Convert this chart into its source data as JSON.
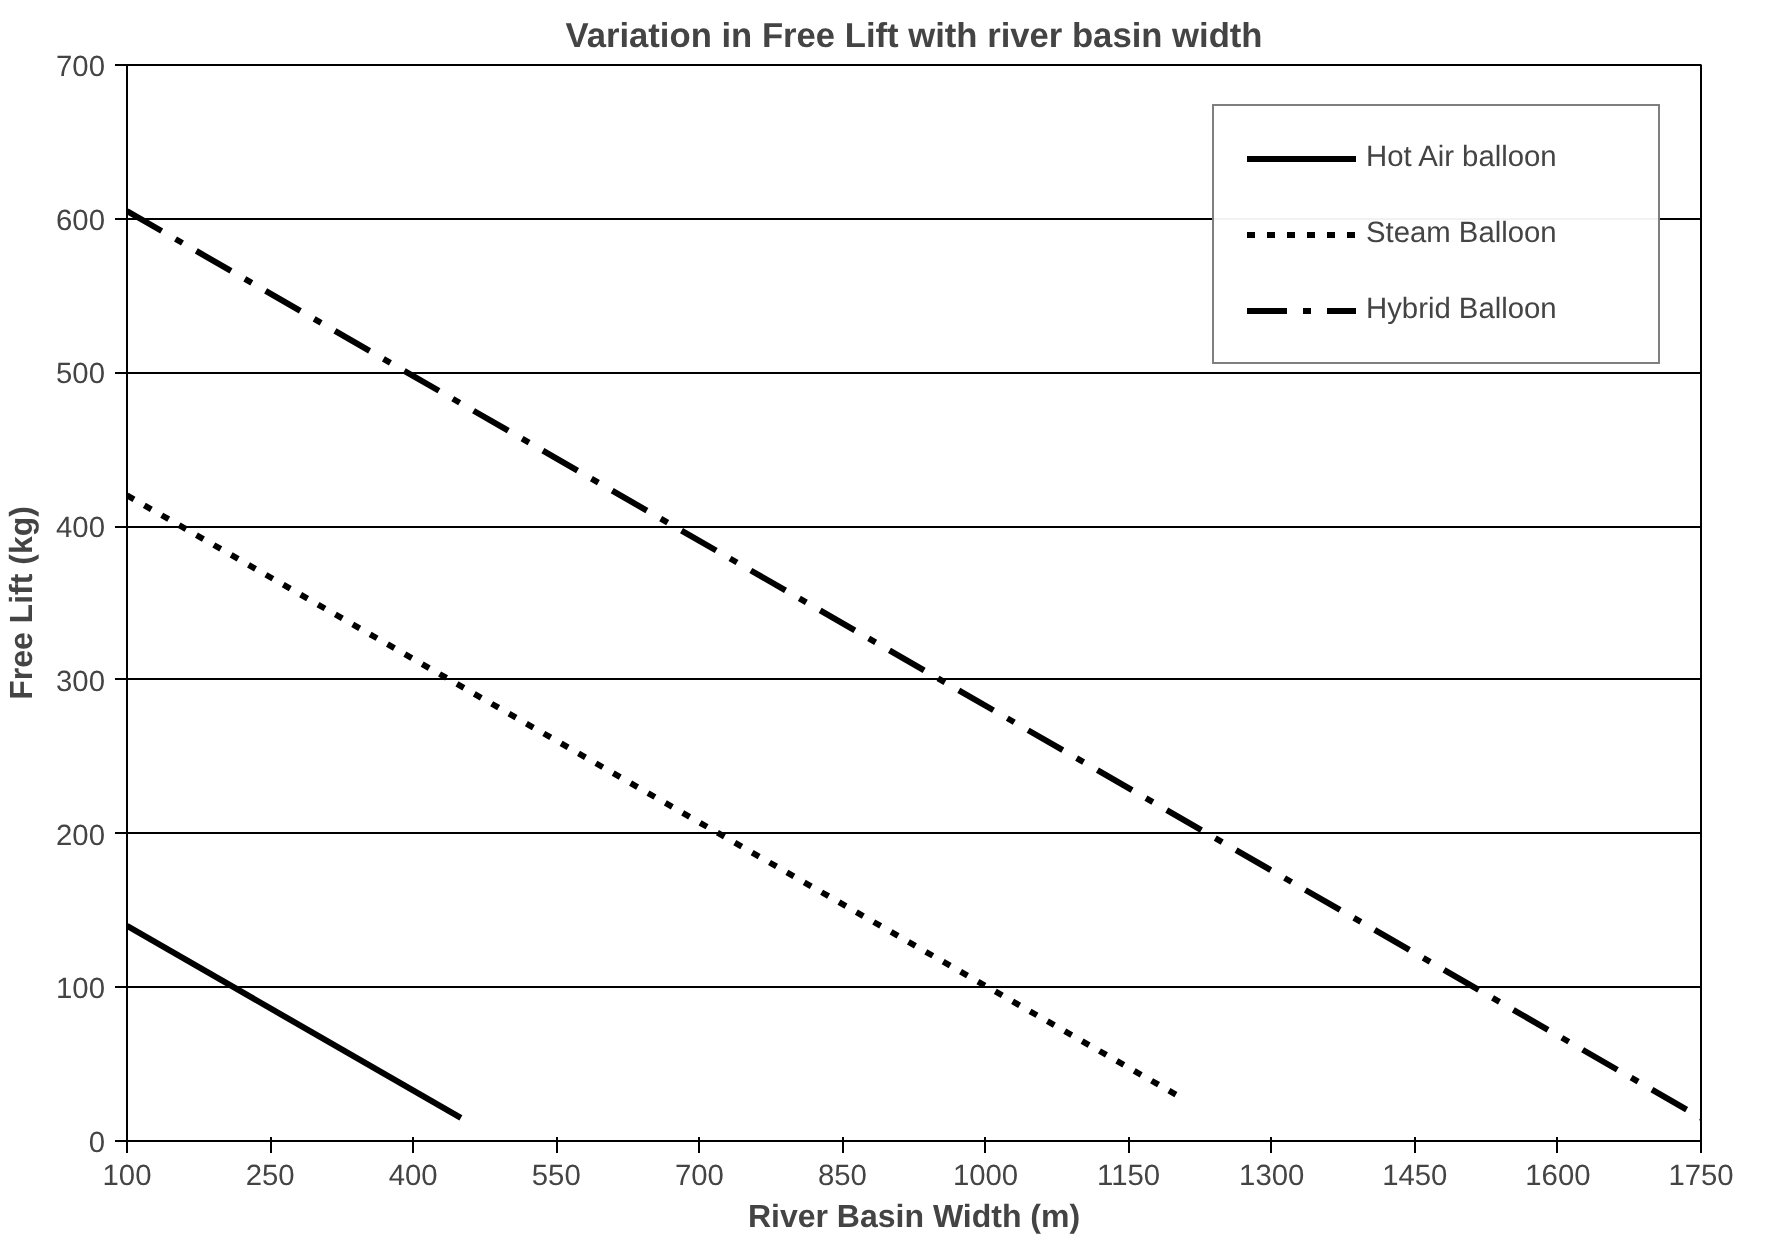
{
  "chart_data": {
    "type": "line",
    "title": "Variation in Free Lift with river basin width",
    "xlabel": "River Basin Width (m)",
    "ylabel": "Free Lift (kg)",
    "xlim": [
      100,
      1750
    ],
    "xticks": [
      100,
      250,
      400,
      550,
      700,
      850,
      1000,
      1150,
      1300,
      1450,
      1600,
      1750
    ],
    "ylim": [
      0,
      700
    ],
    "yticks": [
      0,
      100,
      200,
      300,
      400,
      500,
      600,
      700
    ],
    "grid": "y",
    "legend": "top right",
    "marker": "none",
    "series": [
      {
        "name": "Hot Air balloon",
        "color": "#000000",
        "line_style": "solid",
        "x": [
          100,
          450
        ],
        "values": [
          140,
          15
        ]
      },
      {
        "name": "Steam Balloon",
        "color": "#000000",
        "line_style": "dotted",
        "x": [
          100,
          1200
        ],
        "values": [
          420,
          30
        ]
      },
      {
        "name": "Hybrid Balloon",
        "color": "#000000",
        "line_style": "dashed",
        "x": [
          100,
          1750
        ],
        "values": [
          605,
          15
        ]
      }
    ]
  }
}
